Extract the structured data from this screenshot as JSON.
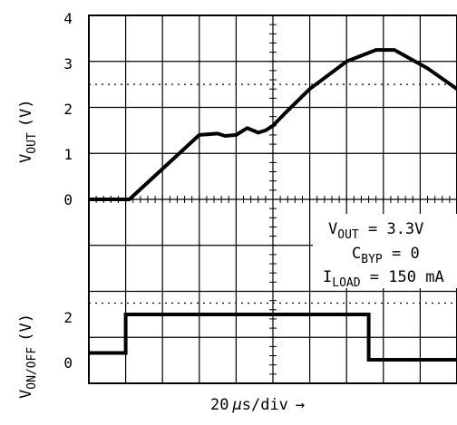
{
  "chart_data": [
    {
      "type": "line",
      "panel": "top",
      "ylabel": "V",
      "ylabel_sub": "OUT",
      "ylabel_unit": "(V)",
      "ylim": [
        0,
        4
      ],
      "yticks": [
        0,
        1,
        2,
        3,
        4
      ],
      "reference_line_dotted": 2.5,
      "x_unit_per_div": "20 µs",
      "x_divisions": 10,
      "series": [
        {
          "x_us": [
            0,
            11,
            30,
            35,
            37,
            40,
            43,
            46,
            48,
            50,
            53,
            60,
            70,
            78,
            83,
            92,
            100
          ],
          "y": [
            0,
            0,
            1.4,
            1.43,
            1.38,
            1.4,
            1.55,
            1.45,
            1.5,
            1.6,
            1.85,
            2.4,
            3.0,
            3.25,
            3.25,
            2.85,
            2.4
          ]
        }
      ]
    },
    {
      "type": "line",
      "panel": "bottom",
      "ylabel": "V",
      "ylabel_sub": "ON/OFF",
      "ylabel_unit": "(V)",
      "yticks": [
        0,
        2
      ],
      "reference_line_dotted": 2.5,
      "series": [
        {
          "x_us": [
            0,
            10,
            10,
            76,
            76,
            100
          ],
          "y": [
            0.3,
            0.3,
            2,
            2,
            0,
            0
          ]
        }
      ]
    }
  ],
  "annotations": {
    "vout_label": "V",
    "vout_sub": "OUT",
    "vout_value": " = 3.3V",
    "cbyp_label": "C",
    "cbyp_sub": "BYP",
    "cbyp_value": " = 0",
    "iload_label": "I",
    "iload_sub": "LOAD",
    "iload_value": " = 150 mA"
  },
  "xaxis": {
    "label": "20",
    "mu": "µ",
    "unit": "s/div",
    "arrow": "→"
  },
  "yticks_top": [
    "4",
    "3",
    "2",
    "1",
    "0"
  ],
  "yticks_bottom": [
    "2",
    "0"
  ]
}
